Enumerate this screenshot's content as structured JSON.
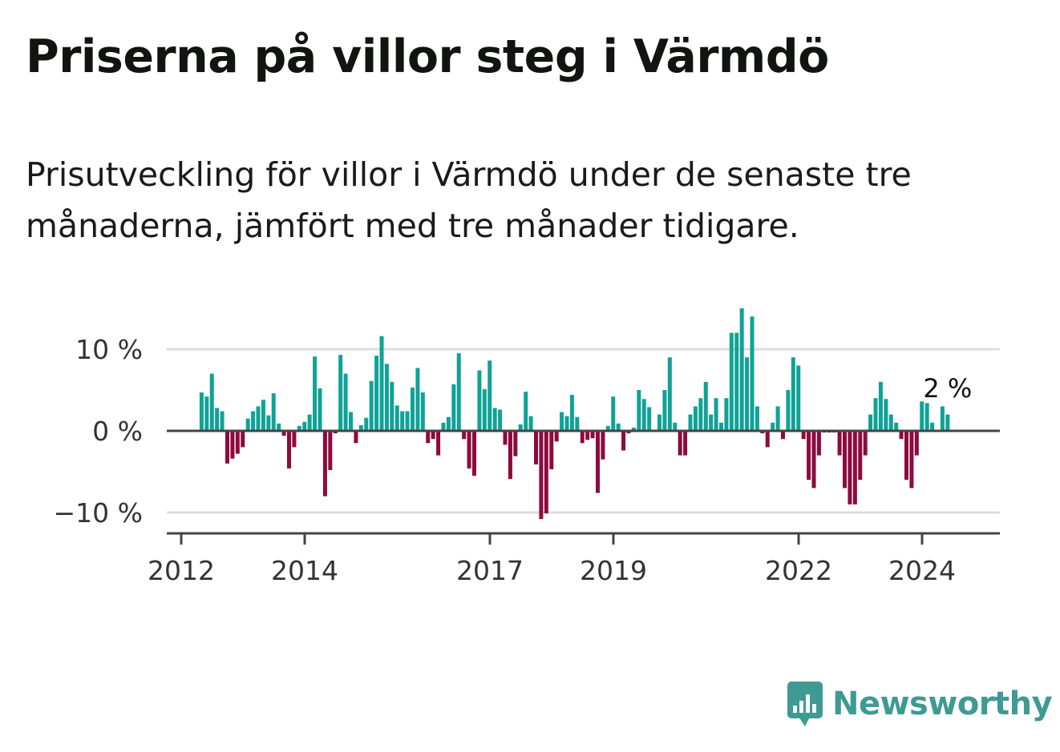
{
  "title": "Priserna på villor steg i Värmdö",
  "subtitle": "Prisutveckling för villor i Värmdö under de senaste tre månaderna, jämfört med tre månader tidigare.",
  "brand": {
    "name": "Newsworthy",
    "icon": "newsworthy-bar-chart-icon",
    "color": "#3e9a93"
  },
  "colors": {
    "positive": "#10a296",
    "negative": "#8e0a3e",
    "grid": "#dddddd",
    "axis": "#444444"
  },
  "chart_data": {
    "type": "bar",
    "title": "Priserna på villor steg i Värmdö",
    "xlabel": "",
    "ylabel": "",
    "y_unit": "%",
    "ylim": [
      -12.5,
      15
    ],
    "y_ticks": [
      {
        "value": 10,
        "label": "10 %"
      },
      {
        "value": 0,
        "label": "0 %"
      },
      {
        "value": -10,
        "label": "−10 %"
      }
    ],
    "x_start": 2012.0,
    "x_end": 2025.3,
    "bar_step_months": 1,
    "x_ticks": [
      {
        "value": 2012,
        "label": "2012"
      },
      {
        "value": 2014,
        "label": "2014"
      },
      {
        "value": 2017,
        "label": "2017"
      },
      {
        "value": 2019,
        "label": "2019"
      },
      {
        "value": 2022,
        "label": "2022"
      },
      {
        "value": 2024,
        "label": "2024"
      }
    ],
    "series_start": 2012.33,
    "values": [
      4.7,
      4.2,
      7.0,
      2.8,
      2.4,
      -4.0,
      -3.4,
      -2.8,
      -2.0,
      1.5,
      2.4,
      3.0,
      3.8,
      1.9,
      4.6,
      0.9,
      -0.6,
      -4.6,
      -2.0,
      0.6,
      1.1,
      2.0,
      9.1,
      5.2,
      -8.0,
      -4.8,
      -0.3,
      9.3,
      7.0,
      2.3,
      -1.5,
      0.7,
      1.6,
      6.1,
      9.2,
      11.6,
      8.2,
      6.0,
      3.1,
      2.4,
      2.4,
      5.3,
      7.7,
      4.7,
      -1.5,
      -1.0,
      -3.0,
      1.0,
      1.7,
      5.7,
      9.5,
      -1.0,
      -4.6,
      -5.5,
      7.4,
      5.1,
      8.6,
      2.8,
      2.6,
      -1.7,
      -5.9,
      -3.1,
      0.8,
      4.8,
      1.8,
      -4.1,
      -10.8,
      -10.1,
      -4.7,
      -1.3,
      2.3,
      1.8,
      4.4,
      1.7,
      -1.5,
      -1.1,
      -0.9,
      -7.6,
      -3.5,
      0.6,
      4.2,
      0.9,
      -2.4,
      -0.3,
      0.4,
      5.0,
      3.9,
      2.9,
      0.1,
      2.0,
      5.0,
      9.0,
      1.0,
      -3.0,
      -3.0,
      2.0,
      3.0,
      4.0,
      6.0,
      2.0,
      4.0,
      1.0,
      4.0,
      12.0,
      12.0,
      15.0,
      9.0,
      14.0,
      3.0,
      -0.3,
      -2.0,
      1.0,
      3.0,
      -1.0,
      5.0,
      9.0,
      8.0,
      -1.0,
      -6.0,
      -7.0,
      -3.0,
      -0.2,
      -0.2,
      -0.2,
      -3.0,
      -7.0,
      -9.0,
      -9.0,
      -6.0,
      -3.0,
      2.0,
      4.0,
      6.0,
      3.9,
      2.0,
      1.0,
      -1.0,
      -6.0,
      -7.0,
      -3.0,
      3.6,
      3.4,
      1.0,
      0.1,
      3.0,
      2.0
    ],
    "annotations": [
      {
        "index": -1,
        "text": "2 %"
      }
    ]
  }
}
